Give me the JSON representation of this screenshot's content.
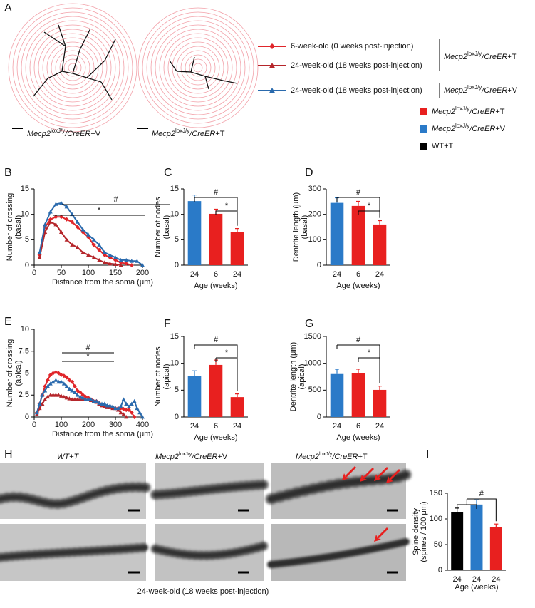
{
  "panel_labels": [
    "A",
    "B",
    "C",
    "D",
    "E",
    "F",
    "G",
    "H",
    "I"
  ],
  "genotypes": [
    {
      "gene": "Mecp2",
      "allele": "loxJ/y",
      "driver": "/CreER",
      "treatment": "+T"
    },
    {
      "gene": "Mecp2",
      "allele": "loxJ/y",
      "driver": "/CreER",
      "treatment": "+V"
    }
  ],
  "wt": "WT+T",
  "images": {
    "footer": "24-week-old (18 weeks post-injection)"
  },
  "chart_data": [
    {
      "type": "line",
      "xlabel": "Distance from the soma (μm)",
      "ylabel": [
        "Number of crossing",
        "(basal)"
      ],
      "x": [
        10,
        20,
        30,
        40,
        50,
        60,
        70,
        80,
        90,
        100,
        110,
        120,
        130,
        140,
        150,
        160,
        170,
        180,
        190,
        200
      ],
      "xlim": [
        0,
        200
      ],
      "xticks": [
        0,
        50,
        100,
        150,
        200
      ],
      "ylim": [
        0,
        15
      ],
      "yticks": [
        0,
        5,
        10,
        15
      ],
      "annotations": [
        "#",
        "*"
      ],
      "series": [
        {
          "name": "6-week-old (0 weeks post-injection)",
          "color": "#e0262b",
          "marker": "diamond",
          "values": [
            2,
            7.5,
            9,
            9.5,
            9.5,
            9,
            8.5,
            7.5,
            6.5,
            5.5,
            4,
            3,
            2,
            1.5,
            1,
            0.5,
            0.3,
            0,
            null,
            null
          ]
        },
        {
          "name": "24-week-old (18 weeks post-injection)",
          "color": "#b5262b",
          "marker": "triangle",
          "values": [
            1.5,
            6.5,
            8.5,
            8,
            6.5,
            5,
            4,
            3.5,
            2.5,
            2,
            1.5,
            1,
            0.5,
            0.3,
            0.2,
            0,
            null,
            null,
            null,
            null
          ]
        },
        {
          "name": "24-week-old (18 weeks post-injection)",
          "color": "#2a6aad",
          "marker": "triangle",
          "values": [
            2.5,
            8,
            10.5,
            12,
            12.2,
            11.5,
            10,
            8.5,
            7,
            6,
            5,
            4,
            2.5,
            2,
            1.5,
            1,
            1,
            0.8,
            0.8,
            0
          ]
        }
      ]
    },
    {
      "type": "bar",
      "xlabel": "Age (weeks)",
      "ylabel": [
        "Number of nodes",
        "(basal)"
      ],
      "categories": [
        "24",
        "6",
        "24"
      ],
      "values": [
        12.6,
        10.1,
        6.5
      ],
      "errors": [
        1.2,
        0.9,
        0.7
      ],
      "colors": [
        "#2a7ac8",
        "#e8201f",
        "#e8201f"
      ],
      "ylim": [
        0,
        15
      ],
      "yticks": [
        0,
        5,
        10,
        15
      ],
      "annotations": [
        "#",
        "*"
      ]
    },
    {
      "type": "bar",
      "xlabel": "Age (weeks)",
      "ylabel": [
        "Dentrite length (μm)",
        "(basal)"
      ],
      "categories": [
        "24",
        "6",
        "24"
      ],
      "values": [
        245,
        233,
        160
      ],
      "errors": [
        20,
        18,
        15
      ],
      "colors": [
        "#2a7ac8",
        "#e8201f",
        "#e8201f"
      ],
      "ylim": [
        0,
        300
      ],
      "yticks": [
        0,
        100,
        200,
        300
      ],
      "annotations": [
        "#",
        "*"
      ]
    },
    {
      "type": "line",
      "xlabel": "Distance from the soma (μm)",
      "ylabel": [
        "Number of crossing",
        "(apical)"
      ],
      "x": [
        10,
        20,
        30,
        40,
        50,
        60,
        70,
        80,
        90,
        100,
        110,
        120,
        130,
        140,
        150,
        160,
        170,
        180,
        190,
        200,
        210,
        220,
        230,
        240,
        250,
        260,
        270,
        280,
        290,
        300,
        310,
        320,
        330,
        340,
        350,
        360,
        370,
        380,
        390,
        400
      ],
      "xlim": [
        0,
        400
      ],
      "xticks": [
        0,
        100,
        200,
        300,
        400
      ],
      "ylim": [
        0,
        10
      ],
      "yticks": [
        0,
        2.5,
        5,
        7.5,
        10
      ],
      "annotations": [
        "#",
        "*"
      ],
      "series": [
        {
          "color": "#e0262b",
          "marker": "diamond",
          "values": [
            0.5,
            1.5,
            2.5,
            3.5,
            4.2,
            4.8,
            5,
            5.1,
            5,
            4.8,
            4.7,
            4.5,
            4.2,
            4,
            3.5,
            3,
            2.8,
            2.5,
            2.3,
            2.2,
            2,
            1.8,
            1.8,
            1.6,
            1.4,
            1.3,
            1.2,
            1.2,
            1.1,
            1,
            1,
            1,
            0.9,
            0.8,
            0.8,
            0.5,
            0,
            null,
            null,
            null
          ]
        },
        {
          "color": "#b5262b",
          "marker": "triangle",
          "values": [
            0.3,
            1,
            1.5,
            2,
            2.3,
            2.5,
            2.5,
            2.5,
            2.5,
            2.4,
            2.3,
            2.2,
            2.1,
            2,
            2,
            2,
            2,
            2,
            2,
            2,
            1.9,
            1.8,
            1.7,
            1.5,
            1.3,
            1.2,
            1.1,
            1.1,
            1,
            1,
            0.8,
            0.5,
            0.3,
            0,
            null,
            null,
            null,
            null,
            null,
            null
          ]
        },
        {
          "color": "#2a6aad",
          "marker": "triangle",
          "values": [
            0.5,
            1.5,
            2.5,
            3,
            3.5,
            3.8,
            4,
            4.2,
            4,
            4,
            3.8,
            3.5,
            3.2,
            3,
            2.8,
            2.5,
            2.3,
            2.2,
            2,
            2,
            2,
            1.8,
            1.8,
            1.6,
            1.5,
            1.5,
            1.3,
            1.3,
            1.2,
            1,
            1,
            1.2,
            2,
            1.5,
            1.2,
            1.5,
            1.8,
            1,
            0.5,
            0
          ]
        }
      ]
    },
    {
      "type": "bar",
      "xlabel": "Age (weeks)",
      "ylabel": [
        "Number of nodes",
        "(apical)"
      ],
      "categories": [
        "24",
        "6",
        "24"
      ],
      "values": [
        7.6,
        9.7,
        3.7
      ],
      "errors": [
        1,
        0.9,
        0.6
      ],
      "colors": [
        "#2a7ac8",
        "#e8201f",
        "#e8201f"
      ],
      "ylim": [
        0,
        15
      ],
      "yticks": [
        0,
        5,
        10,
        15
      ],
      "annotations": [
        "#",
        "*"
      ]
    },
    {
      "type": "bar",
      "xlabel": "Age (weeks)",
      "ylabel": [
        "Dentrite length (μm)",
        "(apical)"
      ],
      "categories": [
        "24",
        "6",
        "24"
      ],
      "values": [
        800,
        820,
        505
      ],
      "errors": [
        90,
        70,
        70
      ],
      "colors": [
        "#2a7ac8",
        "#e8201f",
        "#e8201f"
      ],
      "ylim": [
        0,
        1500
      ],
      "yticks": [
        0,
        500,
        1000,
        1500
      ],
      "annotations": [
        "#",
        "*"
      ]
    },
    {
      "type": "bar",
      "xlabel": "Age (weeks)",
      "ylabel": [
        "Spine density",
        "(spines / 100 μm)"
      ],
      "categories": [
        "24",
        "24",
        "24"
      ],
      "values": [
        113,
        128,
        84
      ],
      "errors": [
        8,
        9,
        6
      ],
      "colors": [
        "#000000",
        "#2a7ac8",
        "#e8201f"
      ],
      "ylim": [
        0,
        150
      ],
      "yticks": [
        0,
        50,
        100,
        150
      ],
      "annotations": [
        "#"
      ]
    }
  ]
}
